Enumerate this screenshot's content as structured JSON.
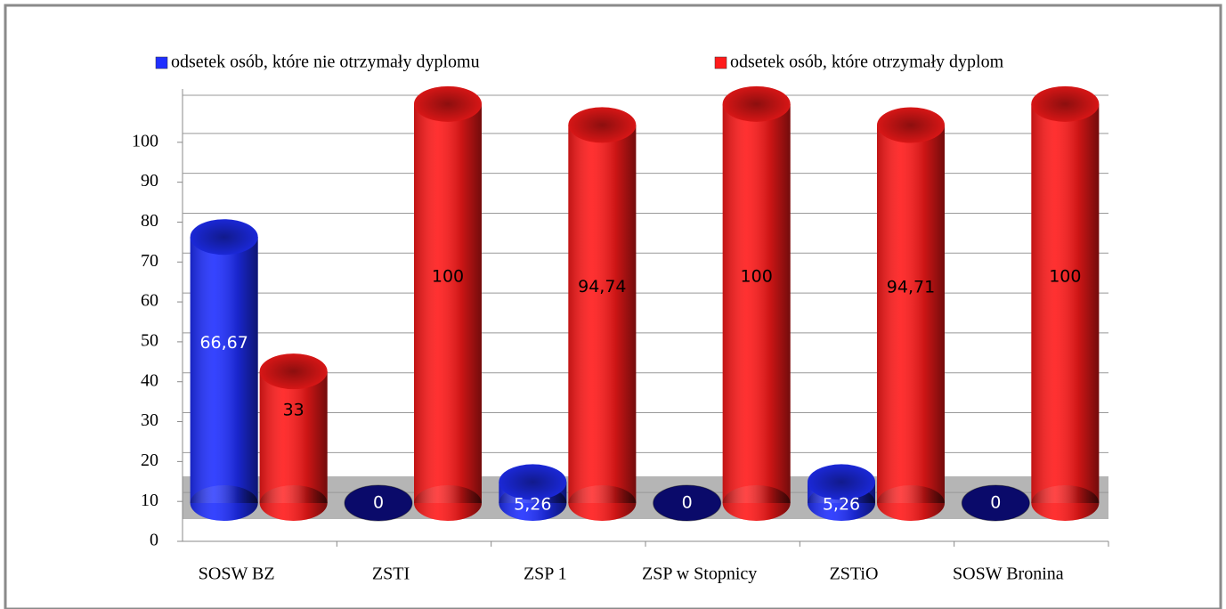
{
  "chart_data": {
    "type": "bar3d",
    "categories": [
      "SOSW BZ",
      "ZSTI",
      "ZSP 1",
      "ZSP w Stopnicy",
      "ZSTiO",
      "SOSW Bronina"
    ],
    "series": [
      {
        "name": "odsetek osób, które nie otrzymały dyplomu",
        "color": "#1f2fff",
        "zero_color": "#0a0a6a",
        "label_color": "#ffffff",
        "values": [
          66.67,
          0,
          5.26,
          0,
          5.26,
          0
        ],
        "value_labels": [
          "66,67",
          "0",
          "5,26",
          "0",
          "5,26",
          "0"
        ]
      },
      {
        "name": "odsetek osób, które otrzymały dyplom",
        "color": "#ff1a1a",
        "zero_color": "#6a0a0a",
        "label_color": "#000000",
        "values": [
          33,
          100,
          94.74,
          100,
          94.71,
          100
        ],
        "value_labels": [
          "33",
          "100",
          "94,74",
          "100",
          "94,71",
          "100"
        ]
      }
    ],
    "ylim": [
      0,
      110
    ],
    "yticks": [
      0,
      10,
      20,
      30,
      40,
      50,
      60,
      70,
      80,
      90,
      100
    ],
    "grid": true
  }
}
